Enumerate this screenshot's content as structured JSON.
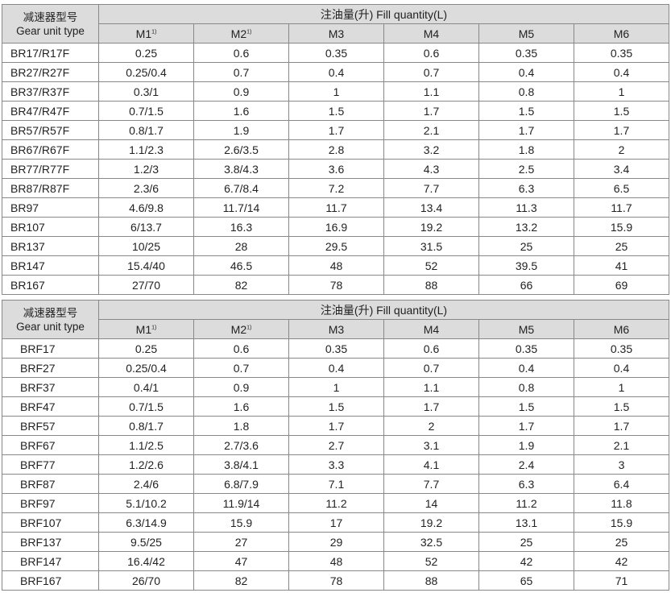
{
  "headers": {
    "type_cn": "减速器型号",
    "type_en": "Gear unit type",
    "fill": "注油量(升) Fill quantity(L)",
    "positions": [
      "M1",
      "M2",
      "M3",
      "M4",
      "M5",
      "M6"
    ],
    "footnote_mark": "1)"
  },
  "table1": [
    [
      "BR17/R17F",
      "0.25",
      "0.6",
      "0.35",
      "0.6",
      "0.35",
      "0.35"
    ],
    [
      "BR27/R27F",
      "0.25/0.4",
      "0.7",
      "0.4",
      "0.7",
      "0.4",
      "0.4"
    ],
    [
      "BR37/R37F",
      "0.3/1",
      "0.9",
      "1",
      "1.1",
      "0.8",
      "1"
    ],
    [
      "BR47/R47F",
      "0.7/1.5",
      "1.6",
      "1.5",
      "1.7",
      "1.5",
      "1.5"
    ],
    [
      "BR57/R57F",
      "0.8/1.7",
      "1.9",
      "1.7",
      "2.1",
      "1.7",
      "1.7"
    ],
    [
      "BR67/R67F",
      "1.1/2.3",
      "2.6/3.5",
      "2.8",
      "3.2",
      "1.8",
      "2"
    ],
    [
      "BR77/R77F",
      "1.2/3",
      "3.8/4.3",
      "3.6",
      "4.3",
      "2.5",
      "3.4"
    ],
    [
      "BR87/R87F",
      "2.3/6",
      "6.7/8.4",
      "7.2",
      "7.7",
      "6.3",
      "6.5"
    ],
    [
      "BR97",
      "4.6/9.8",
      "11.7/14",
      "11.7",
      "13.4",
      "11.3",
      "11.7"
    ],
    [
      "BR107",
      "6/13.7",
      "16.3",
      "16.9",
      "19.2",
      "13.2",
      "15.9"
    ],
    [
      "BR137",
      "10/25",
      "28",
      "29.5",
      "31.5",
      "25",
      "25"
    ],
    [
      "BR147",
      "15.4/40",
      "46.5",
      "48",
      "52",
      "39.5",
      "41"
    ],
    [
      "BR167",
      "27/70",
      "82",
      "78",
      "88",
      "66",
      "69"
    ]
  ],
  "table2": [
    [
      "BRF17",
      "0.25",
      "0.6",
      "0.35",
      "0.6",
      "0.35",
      "0.35"
    ],
    [
      "BRF27",
      "0.25/0.4",
      "0.7",
      "0.4",
      "0.7",
      "0.4",
      "0.4"
    ],
    [
      "BRF37",
      "0.4/1",
      "0.9",
      "1",
      "1.1",
      "0.8",
      "1"
    ],
    [
      "BRF47",
      "0.7/1.5",
      "1.6",
      "1.5",
      "1.7",
      "1.5",
      "1.5"
    ],
    [
      "BRF57",
      "0.8/1.7",
      "1.8",
      "1.7",
      "2",
      "1.7",
      "1.7"
    ],
    [
      "BRF67",
      "1.1/2.5",
      "2.7/3.6",
      "2.7",
      "3.1",
      "1.9",
      "2.1"
    ],
    [
      "BRF77",
      "1.2/2.6",
      "3.8/4.1",
      "3.3",
      "4.1",
      "2.4",
      "3"
    ],
    [
      "BRF87",
      "2.4/6",
      "6.8/7.9",
      "7.1",
      "7.7",
      "6.3",
      "6.4"
    ],
    [
      "BRF97",
      "5.1/10.2",
      "11.9/14",
      "11.2",
      "14",
      "11.2",
      "11.8"
    ],
    [
      "BRF107",
      "6.3/14.9",
      "15.9",
      "17",
      "19.2",
      "13.1",
      "15.9"
    ],
    [
      "BRF137",
      "9.5/25",
      "27",
      "29",
      "32.5",
      "25",
      "25"
    ],
    [
      "BRF147",
      "16.4/42",
      "47",
      "48",
      "52",
      "42",
      "42"
    ],
    [
      "BRF167",
      "26/70",
      "82",
      "78",
      "88",
      "65",
      "71"
    ]
  ]
}
